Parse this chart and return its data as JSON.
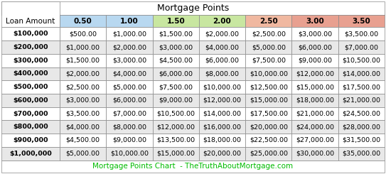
{
  "title": "Mortgage Points",
  "footer": "Mortgage Points Chart  - TheTruthAboutMortgage.com",
  "footer_color": "#00bb00",
  "col_header_label": "Loan Amount",
  "col_headers": [
    "0.50",
    "1.00",
    "1.50",
    "2.00",
    "2.50",
    "3.00",
    "3.50"
  ],
  "col_header_colors": [
    "#b8d8f0",
    "#b8d8f0",
    "#c8e6a0",
    "#c8e6a0",
    "#f0b8a0",
    "#e8a090",
    "#e8a090"
  ],
  "row_labels": [
    "$100,000",
    "$200,000",
    "$300,000",
    "$400,000",
    "$500,000",
    "$600,000",
    "$700,000",
    "$800,000",
    "$900,000",
    "$1,000,000"
  ],
  "data": [
    [
      "$500.00",
      "$1,000.00",
      "$1,500.00",
      "$2,000.00",
      "$2,500.00",
      "$3,000.00",
      "$3,500.00"
    ],
    [
      "$1,000.00",
      "$2,000.00",
      "$3,000.00",
      "$4,000.00",
      "$5,000.00",
      "$6,000.00",
      "$7,000.00"
    ],
    [
      "$1,500.00",
      "$3,000.00",
      "$4,500.00",
      "$6,000.00",
      "$7,500.00",
      "$9,000.00",
      "$10,500.00"
    ],
    [
      "$2,000.00",
      "$4,000.00",
      "$6,000.00",
      "$8,000.00",
      "$10,000.00",
      "$12,000.00",
      "$14,000.00"
    ],
    [
      "$2,500.00",
      "$5,000.00",
      "$7,500.00",
      "$10,000.00",
      "$12,500.00",
      "$15,000.00",
      "$17,500.00"
    ],
    [
      "$3,000.00",
      "$6,000.00",
      "$9,000.00",
      "$12,000.00",
      "$15,000.00",
      "$18,000.00",
      "$21,000.00"
    ],
    [
      "$3,500.00",
      "$7,000.00",
      "$10,500.00",
      "$14,000.00",
      "$17,500.00",
      "$21,000.00",
      "$24,500.00"
    ],
    [
      "$4,000.00",
      "$8,000.00",
      "$12,000.00",
      "$16,000.00",
      "$20,000.00",
      "$24,000.00",
      "$28,000.00"
    ],
    [
      "$4,500.00",
      "$9,000.00",
      "$13,500.00",
      "$18,000.00",
      "$22,500.00",
      "$27,000.00",
      "$31,500.00"
    ],
    [
      "$5,000.00",
      "$10,000.00",
      "$15,000.00",
      "$20,000.00",
      "$25,000.00",
      "$30,000.00",
      "$35,000.00"
    ]
  ],
  "row_alt_colors": [
    "#ffffff",
    "#e8e8e8"
  ],
  "border_color": "#888888",
  "title_fontsize": 9,
  "header_fontsize": 7.5,
  "data_fontsize": 6.8,
  "footer_fontsize": 7.5,
  "fig_width": 5.43,
  "fig_height": 2.45,
  "dpi": 100
}
